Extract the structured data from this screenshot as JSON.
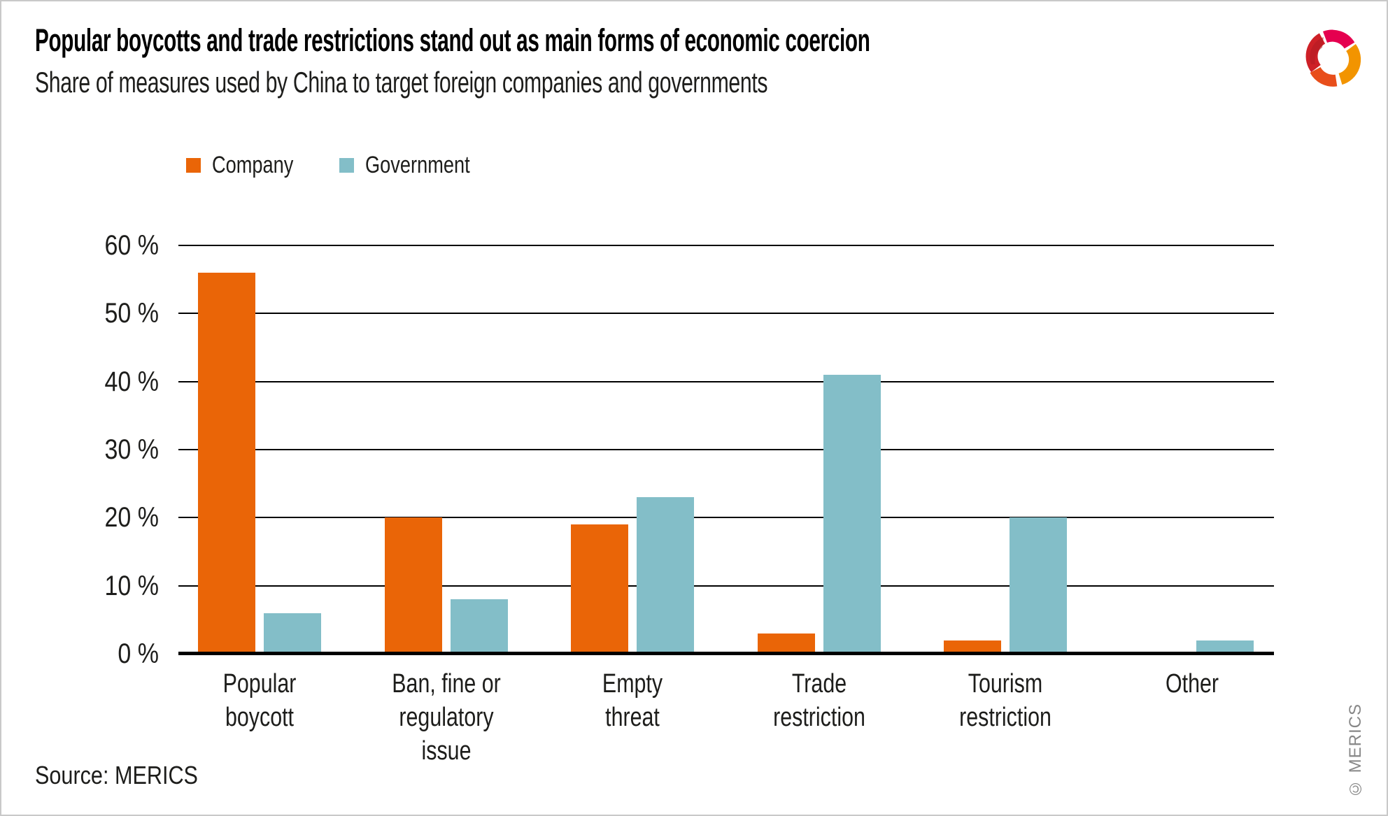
{
  "chart_data": {
    "type": "bar",
    "title": "Popular boycotts and trade restrictions stand out as main forms of economic coercion",
    "subtitle": "Share of measures used by China to target foreign companies and governments",
    "categories": [
      "Popular boycott",
      "Ban, fine or regulatory issue",
      "Empty threat",
      "Trade restriction",
      "Tourism restriction",
      "Other"
    ],
    "category_label_lines": [
      [
        "Popular",
        "boycott"
      ],
      [
        "Ban, fine or",
        "regulatory",
        "issue"
      ],
      [
        "Empty",
        "threat"
      ],
      [
        "Trade",
        "restriction"
      ],
      [
        "Tourism",
        "restriction"
      ],
      [
        "Other"
      ]
    ],
    "series": [
      {
        "name": "Company",
        "color": "#EA6507",
        "values": [
          56,
          20,
          19,
          3,
          2,
          0
        ]
      },
      {
        "name": "Government",
        "color": "#83BEC8",
        "values": [
          6,
          8,
          23,
          41,
          20,
          2
        ]
      }
    ],
    "unit": "%",
    "ylim": [
      0,
      60
    ],
    "y_ticks": [
      60,
      50,
      40,
      30,
      20,
      10,
      0
    ],
    "y_tick_labels": [
      "60 %",
      "50 %",
      "40 %",
      "30 %",
      "20 %",
      "10 %",
      "0 %"
    ],
    "grid": "horizontal",
    "legend_position": "top-left"
  },
  "legend": [
    {
      "label": "Company",
      "color": "#EA6507"
    },
    {
      "label": "Government",
      "color": "#83BEC8"
    }
  ],
  "footer": {
    "source": "Source: MERICS",
    "copyright": "© MERICS"
  },
  "branding": {
    "logo": "merics-logo",
    "logo_colors": [
      "#CE2027",
      "#E5004F",
      "#F29400",
      "#E84E1B"
    ]
  }
}
